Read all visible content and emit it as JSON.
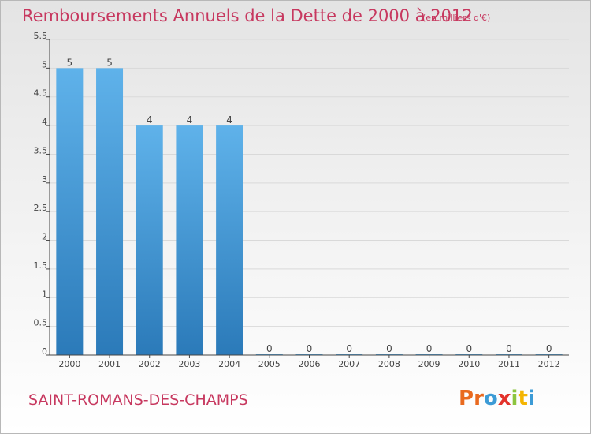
{
  "title": "Remboursements Annuels de la Dette de 2000 à 2012",
  "unit": "(en milliers d'€)",
  "commune": "SAINT-ROMANS-DES-CHAMPS",
  "logo": {
    "letters": [
      "P",
      "r",
      "o",
      "x",
      "i",
      "t",
      "i"
    ],
    "colors": [
      "#e96a1f",
      "#e96a1f",
      "#3c9bd6",
      "#e3322b",
      "#8cc43f",
      "#f4b400",
      "#3c9bd6"
    ]
  },
  "colors": {
    "bar_light": "#5fb2ea",
    "bar_dark": "#2b7ab9",
    "title": "#c7385f",
    "axis": "#444444",
    "grid": "#d9d9d9"
  },
  "chart_data": {
    "type": "bar",
    "categories": [
      "2000",
      "2001",
      "2002",
      "2003",
      "2004",
      "2005",
      "2006",
      "2007",
      "2008",
      "2009",
      "2010",
      "2011",
      "2012"
    ],
    "values": [
      5,
      5,
      4,
      4,
      4,
      0,
      0,
      0,
      0,
      0,
      0,
      0,
      0
    ],
    "data_labels": [
      "5",
      "5",
      "4",
      "4",
      "4",
      "0",
      "0",
      "0",
      "0",
      "0",
      "0",
      "0",
      "0"
    ],
    "yticks": [
      0,
      0.5,
      1,
      1.5,
      2,
      2.5,
      3,
      3.5,
      4,
      4.5,
      5,
      5.5
    ],
    "ytick_labels": [
      "0",
      "0.5",
      "1",
      "1.5",
      "2",
      "2.5",
      "3",
      "3.5",
      "4",
      "4.5",
      "5",
      "5.5"
    ],
    "ylim": [
      0,
      5.5
    ],
    "grid": true,
    "legend": "none"
  }
}
